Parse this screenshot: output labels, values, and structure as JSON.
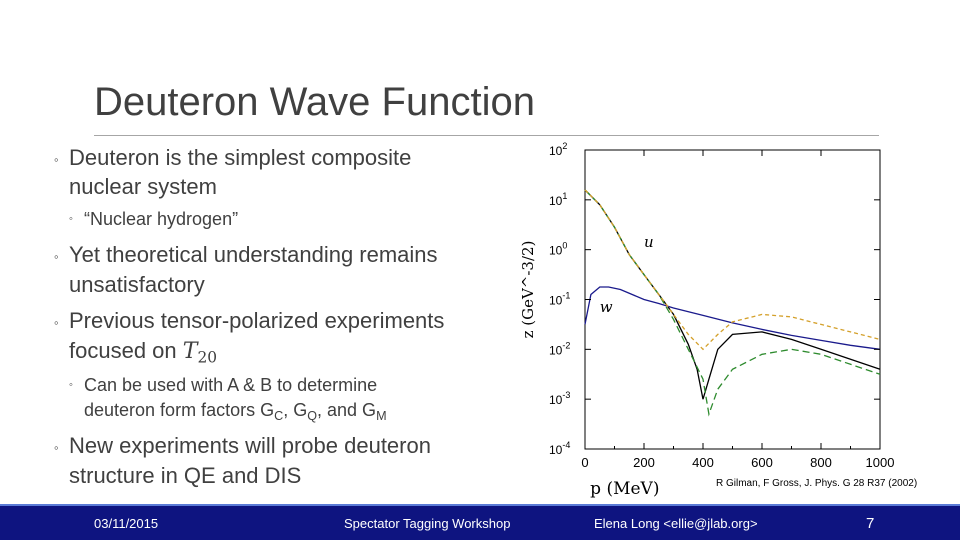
{
  "slide": {
    "title": "Deuteron Wave Function",
    "bullets": [
      {
        "level": 1,
        "lines": [
          "Deuteron is the simplest composite",
          "nuclear system"
        ]
      },
      {
        "level": 2,
        "lines": [
          "“Nuclear hydrogen”"
        ]
      },
      {
        "level": 1,
        "lines": [
          "Yet theoretical understanding remains",
          "unsatisfactory"
        ]
      },
      {
        "level": 1,
        "lines": [
          "Previous tensor-polarized experiments",
          "focused on"
        ],
        "math": "T",
        "math_sub": "20"
      },
      {
        "level": 2,
        "lines": [
          "Can be used with A & B to determine",
          "deuteron form factors G",
          ", G",
          ", and G"
        ],
        "subs": [
          "C",
          "Q",
          "M"
        ]
      },
      {
        "level": 1,
        "lines": [
          "New experiments will probe deuteron",
          "structure in QE and DIS"
        ]
      }
    ],
    "bullet_marker": "◦"
  },
  "figure": {
    "citation": "R Gilman, F Gross, J. Phys. G 28 R37 (2002)"
  },
  "chart_data": {
    "type": "line",
    "xlabel": "p (MeV)",
    "ylabel": "z (GeV^-3/2)",
    "xlim": [
      0,
      1000
    ],
    "ylim_log10": [
      -4,
      2
    ],
    "log_y": true,
    "x_ticks": [
      "0",
      "200",
      "400",
      "600",
      "800",
      "1000"
    ],
    "y_ticks": [
      {
        "base": "10",
        "exp": "2"
      },
      {
        "base": "10",
        "exp": "1"
      },
      {
        "base": "10",
        "exp": "0"
      },
      {
        "base": "10",
        "exp": "-1"
      },
      {
        "base": "10",
        "exp": "-2"
      },
      {
        "base": "10",
        "exp": "-3"
      },
      {
        "base": "10",
        "exp": "-4"
      }
    ],
    "curve_labels": [
      "u",
      "w"
    ],
    "colors": [
      "#000000",
      "#1a1a8c",
      "#2e8b2e",
      "#d4a02a",
      "#c04010"
    ],
    "series": [
      {
        "x": [
          0,
          50,
          100,
          150,
          200,
          250,
          300,
          350,
          380,
          400,
          420,
          450,
          500,
          600,
          700,
          800,
          900,
          1000
        ],
        "log10y": [
          1.2,
          0.9,
          0.45,
          -0.1,
          -0.5,
          -0.9,
          -1.3,
          -1.9,
          -2.4,
          -3.0,
          -2.6,
          -2.0,
          -1.7,
          -1.65,
          -1.8,
          -2.0,
          -2.2,
          -2.4
        ]
      },
      {
        "x": [
          0,
          20,
          50,
          80,
          120,
          160,
          200,
          250,
          300,
          400,
          500,
          600,
          700,
          800,
          900,
          1000
        ],
        "log10y": [
          -1.5,
          -0.9,
          -0.75,
          -0.75,
          -0.8,
          -0.9,
          -1.0,
          -1.08,
          -1.17,
          -1.32,
          -1.47,
          -1.6,
          -1.72,
          -1.82,
          -1.92,
          -2.0
        ]
      },
      {
        "x": [
          0,
          50,
          100,
          150,
          200,
          250,
          300,
          350,
          400,
          420,
          450,
          500,
          600,
          700,
          800,
          900,
          1000
        ],
        "log10y": [
          1.2,
          0.9,
          0.45,
          -0.1,
          -0.5,
          -0.9,
          -1.4,
          -2.0,
          -2.6,
          -3.3,
          -2.8,
          -2.4,
          -2.1,
          -2.0,
          -2.1,
          -2.3,
          -2.5
        ]
      },
      {
        "x": [
          0,
          50,
          100,
          150,
          200,
          250,
          300,
          350,
          400,
          450,
          500,
          600,
          700,
          800,
          900,
          1000
        ],
        "log10y": [
          1.2,
          0.9,
          0.45,
          -0.1,
          -0.5,
          -0.9,
          -1.3,
          -1.7,
          -2.0,
          -1.7,
          -1.45,
          -1.3,
          -1.35,
          -1.5,
          -1.65,
          -1.8
        ]
      }
    ]
  },
  "footer": {
    "date": "03/11/2015",
    "event": "Spectator Tagging Workshop",
    "author": "Elena Long <ellie@jlab.org>",
    "page": "7"
  }
}
